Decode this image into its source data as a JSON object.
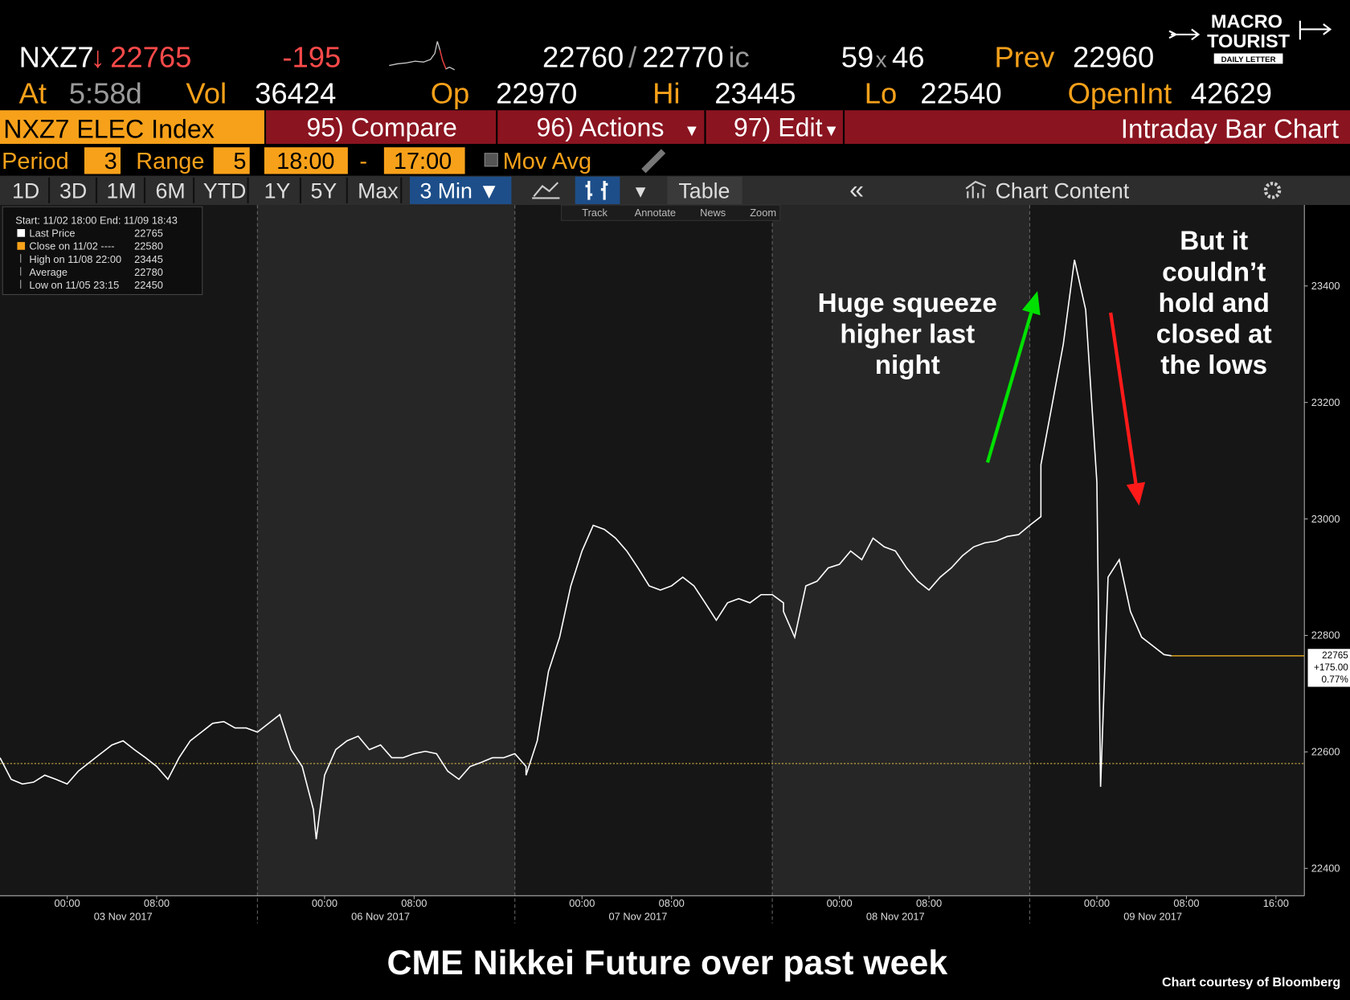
{
  "header": {
    "ticker": "NXZ7",
    "arrow": "↓",
    "last": "22765",
    "change": "-195",
    "bid": "22760",
    "slash": "/",
    "ask": "22770",
    "suffix": "ic",
    "size_bid": "59",
    "size_sep": "x",
    "size_ask": "46",
    "prev_label": "Prev",
    "prev": "22960",
    "at_label": "At",
    "at": "5:58d",
    "vol_label": "Vol",
    "vol": "36424",
    "op_label": "Op",
    "op": "22970",
    "hi_label": "Hi",
    "hi": "23445",
    "lo_label": "Lo",
    "lo": "22540",
    "oi_label": "OpenInt",
    "oi": "42629"
  },
  "logo": {
    "line1": "MACRO",
    "line2": "TOURIST",
    "line3": "DAILY LETTER"
  },
  "menu": {
    "security": "NXZ7 ELEC Index",
    "compare": "95) Compare",
    "actions": "96) Actions",
    "edit": "97) Edit",
    "view": "Intraday Bar Chart",
    "caret": "▾"
  },
  "settings": {
    "period_label": "Period",
    "period": "3",
    "range_label": "Range",
    "range": "5",
    "start": "18:00",
    "dash": "-",
    "end": "17:00",
    "mov_avg": "Mov Avg"
  },
  "tabs": {
    "ranges": [
      "1D",
      "3D",
      "1M",
      "6M",
      "YTD",
      "1Y",
      "5Y",
      "Max"
    ],
    "interval": "3 Min ▼",
    "dropdown": "▼",
    "table": "Table",
    "collapse": "«",
    "content": "Chart Content"
  },
  "tools": [
    "Track",
    "Annotate",
    "News",
    "Zoom"
  ],
  "chart_data": {
    "type": "line",
    "legend": {
      "header": "Start: 11/02 18:00 End: 11/09 18:43",
      "rows": [
        {
          "label": "Last Price",
          "value": "22765"
        },
        {
          "label": "Close on 11/02 ----",
          "value": "22580"
        },
        {
          "label": "High on 11/08 22:00",
          "value": "23445"
        },
        {
          "label": "Average",
          "value": "22780"
        },
        {
          "label": "Low on 11/05 23:15",
          "value": "22450"
        }
      ]
    },
    "series": [
      {
        "color": "#ffffff",
        "x": [
          "2017-11-02 18:00",
          "2017-11-02 19:00",
          "2017-11-02 20:00",
          "2017-11-02 21:00",
          "2017-11-02 22:00",
          "2017-11-02 23:00",
          "2017-11-03 00:00",
          "2017-11-03 01:00",
          "2017-11-03 02:00",
          "2017-11-03 03:00",
          "2017-11-03 04:00",
          "2017-11-03 05:00",
          "2017-11-03 06:00",
          "2017-11-03 07:00",
          "2017-11-03 08:00",
          "2017-11-03 09:00",
          "2017-11-03 10:00",
          "2017-11-03 11:00",
          "2017-11-03 12:00",
          "2017-11-03 13:00",
          "2017-11-03 14:00",
          "2017-11-03 15:00",
          "2017-11-03 16:00",
          "2017-11-03 17:00",
          "2017-11-05 18:00",
          "2017-11-05 19:00",
          "2017-11-05 20:00",
          "2017-11-05 21:00",
          "2017-11-05 22:00",
          "2017-11-05 23:00",
          "2017-11-05 23:15",
          "2017-11-06 00:00",
          "2017-11-06 01:00",
          "2017-11-06 02:00",
          "2017-11-06 03:00",
          "2017-11-06 04:00",
          "2017-11-06 05:00",
          "2017-11-06 06:00",
          "2017-11-06 07:00",
          "2017-11-06 08:00",
          "2017-11-06 09:00",
          "2017-11-06 10:00",
          "2017-11-06 11:00",
          "2017-11-06 12:00",
          "2017-11-06 13:00",
          "2017-11-06 14:00",
          "2017-11-06 15:00",
          "2017-11-06 16:00",
          "2017-11-06 17:00",
          "2017-11-06 18:00",
          "2017-11-06 19:00",
          "2017-11-06 20:00",
          "2017-11-06 21:00",
          "2017-11-06 22:00",
          "2017-11-06 23:00",
          "2017-11-07 00:00",
          "2017-11-07 01:00",
          "2017-11-07 02:00",
          "2017-11-07 03:00",
          "2017-11-07 04:00",
          "2017-11-07 05:00",
          "2017-11-07 06:00",
          "2017-11-07 07:00",
          "2017-11-07 08:00",
          "2017-11-07 09:00",
          "2017-11-07 10:00",
          "2017-11-07 11:00",
          "2017-11-07 12:00",
          "2017-11-07 13:00",
          "2017-11-07 14:00",
          "2017-11-07 15:00",
          "2017-11-07 16:00",
          "2017-11-07 17:00",
          "2017-11-07 18:00",
          "2017-11-07 19:00",
          "2017-11-07 20:00",
          "2017-11-07 21:00",
          "2017-11-07 22:00",
          "2017-11-07 23:00",
          "2017-11-08 00:00",
          "2017-11-08 01:00",
          "2017-11-08 02:00",
          "2017-11-08 03:00",
          "2017-11-08 04:00",
          "2017-11-08 05:00",
          "2017-11-08 06:00",
          "2017-11-08 07:00",
          "2017-11-08 08:00",
          "2017-11-08 09:00",
          "2017-11-08 10:00",
          "2017-11-08 11:00",
          "2017-11-08 12:00",
          "2017-11-08 13:00",
          "2017-11-08 14:00",
          "2017-11-08 15:00",
          "2017-11-08 16:00",
          "2017-11-08 17:00",
          "2017-11-08 18:00",
          "2017-11-08 19:00",
          "2017-11-08 20:00",
          "2017-11-08 21:00",
          "2017-11-08 22:00",
          "2017-11-08 23:00",
          "2017-11-09 00:00",
          "2017-11-09 00:20",
          "2017-11-09 01:00",
          "2017-11-09 02:00",
          "2017-11-09 03:00",
          "2017-11-09 04:00",
          "2017-11-09 05:00",
          "2017-11-09 06:00",
          "2017-11-09 06:40"
        ],
        "values": [
          22590,
          22553,
          22545,
          22548,
          22560,
          22553,
          22545,
          22567,
          22582,
          22597,
          22612,
          22619,
          22604,
          22590,
          22575,
          22553,
          22590,
          22619,
          22634,
          22649,
          22652,
          22641,
          22641,
          22634,
          22634,
          22649,
          22664,
          22604,
          22575,
          22501,
          22450,
          22560,
          22604,
          22619,
          22627,
          22604,
          22612,
          22590,
          22590,
          22597,
          22601,
          22597,
          22567,
          22553,
          22575,
          22582,
          22590,
          22590,
          22597,
          22575,
          22560,
          22619,
          22738,
          22797,
          22885,
          22945,
          22989,
          22982,
          22967,
          22945,
          22916,
          22885,
          22878,
          22885,
          22900,
          22885,
          22856,
          22826,
          22856,
          22863,
          22856,
          22870,
          22870,
          22856,
          22841,
          22797,
          22885,
          22893,
          22916,
          22922,
          22945,
          22930,
          22967,
          22952,
          22945,
          22916,
          22893,
          22878,
          22900,
          22916,
          22937,
          22952,
          22959,
          22962,
          22970,
          22973,
          22989,
          23004,
          23093,
          23196,
          23300,
          23445,
          23359,
          23063,
          22540,
          22900,
          22930,
          22841,
          22797,
          22782,
          22767,
          22765
        ]
      }
    ],
    "last_line_color": "#c8961e",
    "reference_lines": [
      {
        "value": 22580,
        "color": "#e8c34a"
      }
    ],
    "ylim": [
      22353,
      23539
    ],
    "yticks": [
      22400,
      22600,
      22800,
      23000,
      23200,
      23400
    ],
    "xticks": [
      {
        "value": "2017-11-03 00:00",
        "label": "00:00"
      },
      {
        "value": "2017-11-03 08:00",
        "label": "08:00"
      },
      {
        "value": "2017-11-06 00:00",
        "label": "00:00"
      },
      {
        "value": "2017-11-06 08:00",
        "label": "08:00"
      },
      {
        "value": "2017-11-07 00:00",
        "label": "00:00"
      },
      {
        "value": "2017-11-07 08:00",
        "label": "08:00"
      },
      {
        "value": "2017-11-08 00:00",
        "label": "00:00"
      },
      {
        "value": "2017-11-08 08:00",
        "label": "08:00"
      },
      {
        "value": "2017-11-09 00:00",
        "label": "00:00"
      },
      {
        "value": "2017-11-09 08:00",
        "label": "08:00"
      },
      {
        "value": "2017-11-09 16:00",
        "label": "16:00"
      }
    ],
    "date_labels": [
      {
        "value": "2017-11-03",
        "label": "03 Nov 2017"
      },
      {
        "value": "2017-11-06",
        "label": "06 Nov 2017"
      },
      {
        "value": "2017-11-07",
        "label": "07 Nov 2017"
      },
      {
        "value": "2017-11-08",
        "label": "08 Nov 2017"
      },
      {
        "value": "2017-11-09",
        "label": "09 Nov 2017"
      }
    ],
    "price_tag": {
      "price": "22765",
      "change": "+175.00",
      "pct": "0.77%"
    },
    "annotations": [
      {
        "lines": [
          "Huge squeeze",
          "higher last",
          "night"
        ],
        "color": "#00e000"
      },
      {
        "lines": [
          "But it",
          "couldn’t",
          "hold and",
          "closed at",
          "the lows"
        ],
        "color": "#ff1a1a"
      }
    ],
    "title": "CME Nikkei Future over past week",
    "credit": "Chart courtesy of Bloomberg"
  }
}
